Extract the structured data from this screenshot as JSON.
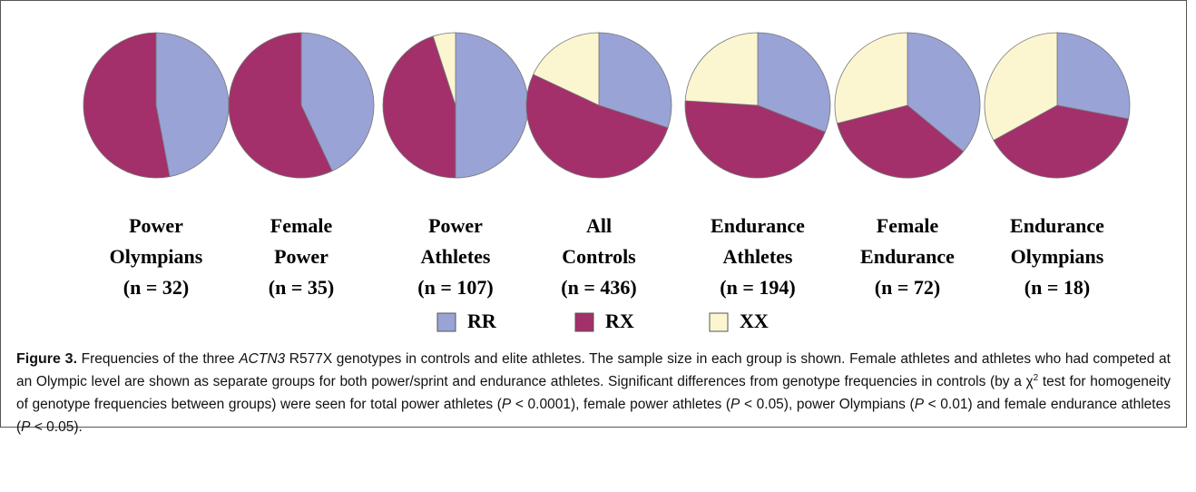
{
  "chart_data": [
    {
      "type": "pie",
      "title": [
        "Power",
        "Olympians",
        "(n = 32)"
      ],
      "values": [
        47,
        53,
        0
      ]
    },
    {
      "type": "pie",
      "title": [
        "Female",
        "Power",
        "(n = 35)"
      ],
      "values": [
        43,
        57,
        0
      ]
    },
    {
      "type": "pie",
      "title": [
        "Power",
        "Athletes",
        "(n = 107)"
      ],
      "values": [
        50,
        45,
        5
      ]
    },
    {
      "type": "pie",
      "title": [
        "All",
        "Controls",
        "(n = 436)"
      ],
      "values": [
        30,
        52,
        18
      ]
    },
    {
      "type": "pie",
      "title": [
        "Endurance",
        "Athletes",
        "(n = 194)"
      ],
      "values": [
        31,
        45,
        24
      ]
    },
    {
      "type": "pie",
      "title": [
        "Female",
        "Endurance",
        "(n = 72)"
      ],
      "values": [
        36,
        35,
        29
      ]
    },
    {
      "type": "pie",
      "title": [
        "Endurance",
        "Olympians",
        "(n = 18)"
      ],
      "values": [
        28,
        39,
        33
      ]
    }
  ],
  "legend": {
    "categories": [
      "RR",
      "RX",
      "XX"
    ],
    "colors": [
      "#99a3d6",
      "#a3306b",
      "#fbf6d0"
    ]
  },
  "caption": {
    "label": "Figure 3.",
    "runs": [
      {
        "text": " Frequencies of the three "
      },
      {
        "text": "ACTN3",
        "style": "italic"
      },
      {
        "text": " R577X genotypes in controls and elite athletes. The sample size in each group is shown. Female athletes and athletes who had competed at an Olympic level are shown as separate groups for both power/sprint and endurance athletes. Significant differences from genotype frequencies in controls (by a "
      },
      {
        "text": "χ"
      },
      {
        "text": "2",
        "style": "sup"
      },
      {
        "text": " test for homogeneity of genotype frequencies between groups) were seen for total power athletes ("
      },
      {
        "text": "P",
        "style": "italic"
      },
      {
        "text": " < 0.0001), female power athletes ("
      },
      {
        "text": "P",
        "style": "italic"
      },
      {
        "text": " < 0.05), power Olympians ("
      },
      {
        "text": "P",
        "style": "italic"
      },
      {
        "text": " < 0.01) and female endurance athletes ("
      },
      {
        "text": "P",
        "style": "italic"
      },
      {
        "text": " < 0.05)."
      }
    ]
  }
}
